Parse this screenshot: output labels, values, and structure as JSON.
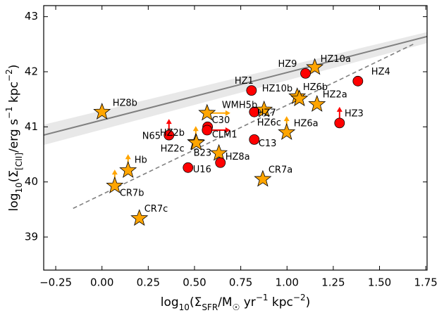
{
  "chart_data": {
    "type": "scatter",
    "x_label": [
      {
        "text": "log"
      },
      {
        "text": "10",
        "shift": "sub"
      },
      {
        "text": "(Σ"
      },
      {
        "text": "SFR",
        "shift": "sub"
      },
      {
        "text": "/M"
      },
      {
        "text": "☉",
        "shift": "sub"
      },
      {
        "text": " yr"
      },
      {
        "text": "−1",
        "shift": "super"
      },
      {
        "text": " kpc"
      },
      {
        "text": "−2",
        "shift": "super"
      },
      {
        "text": ")"
      }
    ],
    "y_label": [
      {
        "text": "log"
      },
      {
        "text": "10",
        "shift": "sub"
      },
      {
        "text": "(Σ"
      },
      {
        "text": "[CII]",
        "shift": "sub"
      },
      {
        "text": "/erg s"
      },
      {
        "text": "−1",
        "shift": "super"
      },
      {
        "text": " kpc"
      },
      {
        "text": "−2",
        "shift": "super"
      },
      {
        "text": ")"
      }
    ],
    "xlim": [
      -0.315,
      1.757
    ],
    "ylim": [
      38.4,
      43.2
    ],
    "xticks": [
      {
        "value": -0.25,
        "label": "−0.25"
      },
      {
        "value": 0,
        "label": "0.00"
      },
      {
        "value": 0.25,
        "label": "0.25"
      },
      {
        "value": 0.5,
        "label": "0.50"
      },
      {
        "value": 0.75,
        "label": "0.75"
      },
      {
        "value": 1,
        "label": "1.00"
      },
      {
        "value": 1.25,
        "label": "1.25"
      },
      {
        "value": 1.5,
        "label": "1.50"
      },
      {
        "value": 1.75,
        "label": "1.75"
      }
    ],
    "yticks": [
      39,
      40,
      41,
      42,
      43
    ],
    "fit": {
      "x": [
        -0.315,
        1.757
      ],
      "y": [
        40.85,
        42.64
      ],
      "y_lower": [
        40.67,
        42.52
      ],
      "y_upper": [
        41.04,
        42.72
      ],
      "color": "#808080",
      "band_color": "#e8e8e8"
    },
    "relation": {
      "x": [
        -0.156,
        1.695
      ],
      "y": [
        39.52,
        42.52
      ],
      "color": "#808080",
      "dash": true
    },
    "points": [
      {
        "label": "HZ8b",
        "x": 0.0,
        "y": 41.27,
        "marker": "star",
        "color": "#ffa500"
      },
      {
        "label": "HZ10a",
        "x": 1.15,
        "y": 42.08,
        "marker": "star",
        "color": "#ffa500"
      },
      {
        "label": "HZ10b",
        "x": 1.055,
        "y": 41.55,
        "marker": "star",
        "color": "#ffa500"
      },
      {
        "label": "HZ6b",
        "x": 1.067,
        "y": 41.51,
        "marker": "star",
        "color": "#ffa500"
      },
      {
        "label": "HZ2a",
        "x": 1.162,
        "y": 41.41,
        "marker": "star",
        "color": "#ffa500"
      },
      {
        "label": "HZ7",
        "x": 0.876,
        "y": 41.31,
        "marker": "star",
        "color": "#ffa500"
      },
      {
        "label": "WMH5b",
        "x": 0.568,
        "y": 41.25,
        "marker": "star",
        "color": "#ffa500",
        "arrow": "right"
      },
      {
        "label": "HZ6a",
        "x": 0.998,
        "y": 40.9,
        "marker": "star",
        "color": "#ffa500",
        "arrow": "up"
      },
      {
        "label": "HZ2b",
        "x": 0.507,
        "y": 40.72,
        "marker": "star",
        "color": "#ffa500",
        "arrow": "up"
      },
      {
        "label": "HZ2c",
        "x": 0.51,
        "y": 40.71,
        "marker": "star",
        "color": "#ffa500"
      },
      {
        "label": "B23",
        "x": 0.632,
        "y": 40.52,
        "marker": "star",
        "color": "#ffa500"
      },
      {
        "label": "CR7a",
        "x": 0.869,
        "y": 40.05,
        "marker": "star",
        "color": "#ffa500"
      },
      {
        "label": "Hb",
        "x": 0.141,
        "y": 40.21,
        "marker": "star",
        "color": "#ffa500",
        "arrow": "up"
      },
      {
        "label": "CR7b",
        "x": 0.069,
        "y": 39.93,
        "marker": "star",
        "color": "#ffa500",
        "arrow": "up"
      },
      {
        "label": "CR7c",
        "x": 0.202,
        "y": 39.34,
        "marker": "star",
        "color": "#ffa500"
      },
      {
        "label": "HZ9",
        "x": 1.1,
        "y": 41.97,
        "marker": "circle",
        "color": "#ff0000"
      },
      {
        "label": "HZ4",
        "x": 1.383,
        "y": 41.83,
        "marker": "circle",
        "color": "#ff0000"
      },
      {
        "label": "HZ1",
        "x": 0.808,
        "y": 41.66,
        "marker": "circle",
        "color": "#ff0000"
      },
      {
        "label": "HZ6c",
        "x": 0.823,
        "y": 41.27,
        "marker": "circle",
        "color": "#ff0000"
      },
      {
        "label": "HZ3",
        "x": 1.284,
        "y": 41.07,
        "marker": "circle",
        "color": "#ff0000",
        "arrow": "up"
      },
      {
        "label": "N65",
        "x": 0.362,
        "y": 40.85,
        "marker": "circle",
        "color": "#ff0000",
        "arrow": "up"
      },
      {
        "label": "C30",
        "x": 0.571,
        "y": 41.0,
        "marker": "circle",
        "color": "#ff0000"
      },
      {
        "label": "CLM1",
        "x": 0.568,
        "y": 40.94,
        "marker": "circle",
        "color": "#ff0000",
        "arrow": "right"
      },
      {
        "label": "C13",
        "x": 0.823,
        "y": 40.77,
        "marker": "circle",
        "color": "#ff0000"
      },
      {
        "label": "HZ8a",
        "x": 0.64,
        "y": 40.35,
        "marker": "circle",
        "color": "#ff0000"
      },
      {
        "label": "U16",
        "x": 0.465,
        "y": 40.26,
        "marker": "circle",
        "color": "#ff0000"
      }
    ]
  }
}
